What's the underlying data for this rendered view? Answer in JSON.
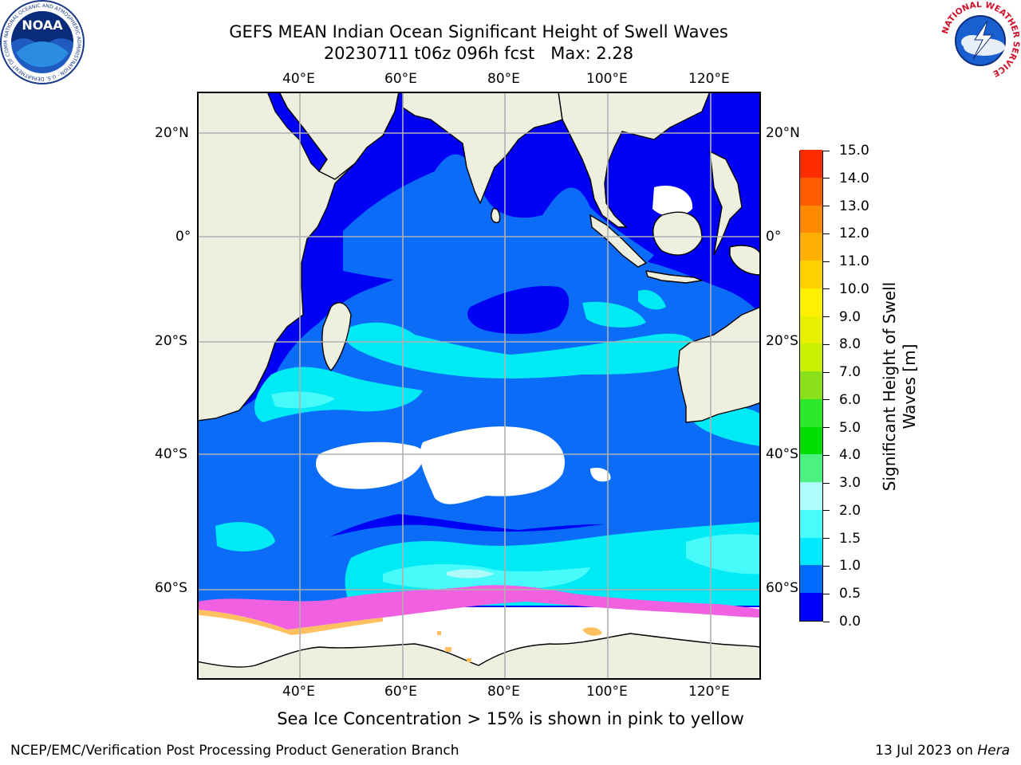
{
  "header": {
    "title_line1": "GEFS MEAN Indian Ocean Significant Height of Swell Waves",
    "title_line2": "20230711 t06z 096h fcst   Max: 2.28"
  },
  "logos": {
    "noaa_text": "NOAA",
    "noaa_ring_text": "NATIONAL OCEANIC AND ATMOSPHERIC ADMINISTRATION · U.S. DEPARTMENT OF COMMERCE",
    "nws_ring_text": "NATIONAL WEATHER SERVICE"
  },
  "map": {
    "lon_labels": [
      "40°E",
      "60°E",
      "80°E",
      "100°E",
      "120°E"
    ],
    "lat_labels": [
      "20°N",
      "0°",
      "20°S",
      "40°S",
      "60°S"
    ],
    "lon_range": [
      20,
      129
    ],
    "lat_range": [
      -84,
      28
    ],
    "colors": {
      "land": "#efefdf",
      "ocean_base": "#0000f5",
      "ocean_mid": "#0a6cf7",
      "ocean_high": "#00eaf5",
      "ocean_higher": "#48fbfb",
      "ocean_top": "#aefafa",
      "no_data": "#ffffff",
      "ice_pink": "#f060e0",
      "ice_yellow": "#ffc060",
      "grid": "#b0b0b0"
    }
  },
  "colorbar": {
    "title": "Significant Height of Swell Waves [m]",
    "tick_labels": [
      "0.0",
      "0.5",
      "1.0",
      "1.5",
      "2.0",
      "3.0",
      "4.0",
      "5.0",
      "6.0",
      "7.0",
      "8.0",
      "9.0",
      "10.0",
      "11.0",
      "12.0",
      "13.0",
      "14.0",
      "15.0"
    ],
    "colors": [
      "#0000ff",
      "#006cff",
      "#00eaff",
      "#48fcfc",
      "#aefcfc",
      "#4cf280",
      "#00e000",
      "#2ee82e",
      "#8ae01a",
      "#c8f000",
      "#e8f000",
      "#ffef00",
      "#ffd000",
      "#ffaf00",
      "#ff8a00",
      "#ff5e00",
      "#ff2c00",
      "#ff0000"
    ]
  },
  "caption": "Sea Ice Concentration > 15% is shown in pink to yellow",
  "footer": {
    "left": "NCEP/EMC/Verification Post Processing Product Generation Branch",
    "right_date": "13 Jul 2023 on ",
    "right_host": "Hera"
  }
}
